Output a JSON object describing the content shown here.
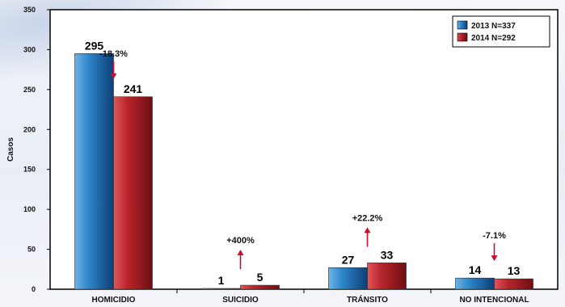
{
  "chart_data": {
    "type": "bar",
    "title": "",
    "xlabel": "",
    "ylabel": "Casos",
    "ylim": [
      0,
      350
    ],
    "yticks": [
      0,
      50,
      100,
      150,
      200,
      250,
      300,
      350
    ],
    "grid": false,
    "legend_position": "top-right",
    "categories": [
      "HOMICIDIO",
      "SUICIDIO",
      "TRÁNSITO",
      "NO INTENCIONAL"
    ],
    "series": [
      {
        "name": "2013 N=337",
        "values": [
          295,
          1,
          27,
          14
        ],
        "color": "#1f6fb5"
      },
      {
        "name": "2014 N=292",
        "values": [
          241,
          5,
          33,
          13
        ],
        "color": "#b0272d"
      }
    ],
    "changes": [
      {
        "label": "-18.3%",
        "direction": "down"
      },
      {
        "label": "+400%",
        "direction": "up"
      },
      {
        "label": "+22.2%",
        "direction": "up"
      },
      {
        "label": "-7.1%",
        "direction": "down"
      }
    ],
    "arrow_color": "#c8102e"
  }
}
